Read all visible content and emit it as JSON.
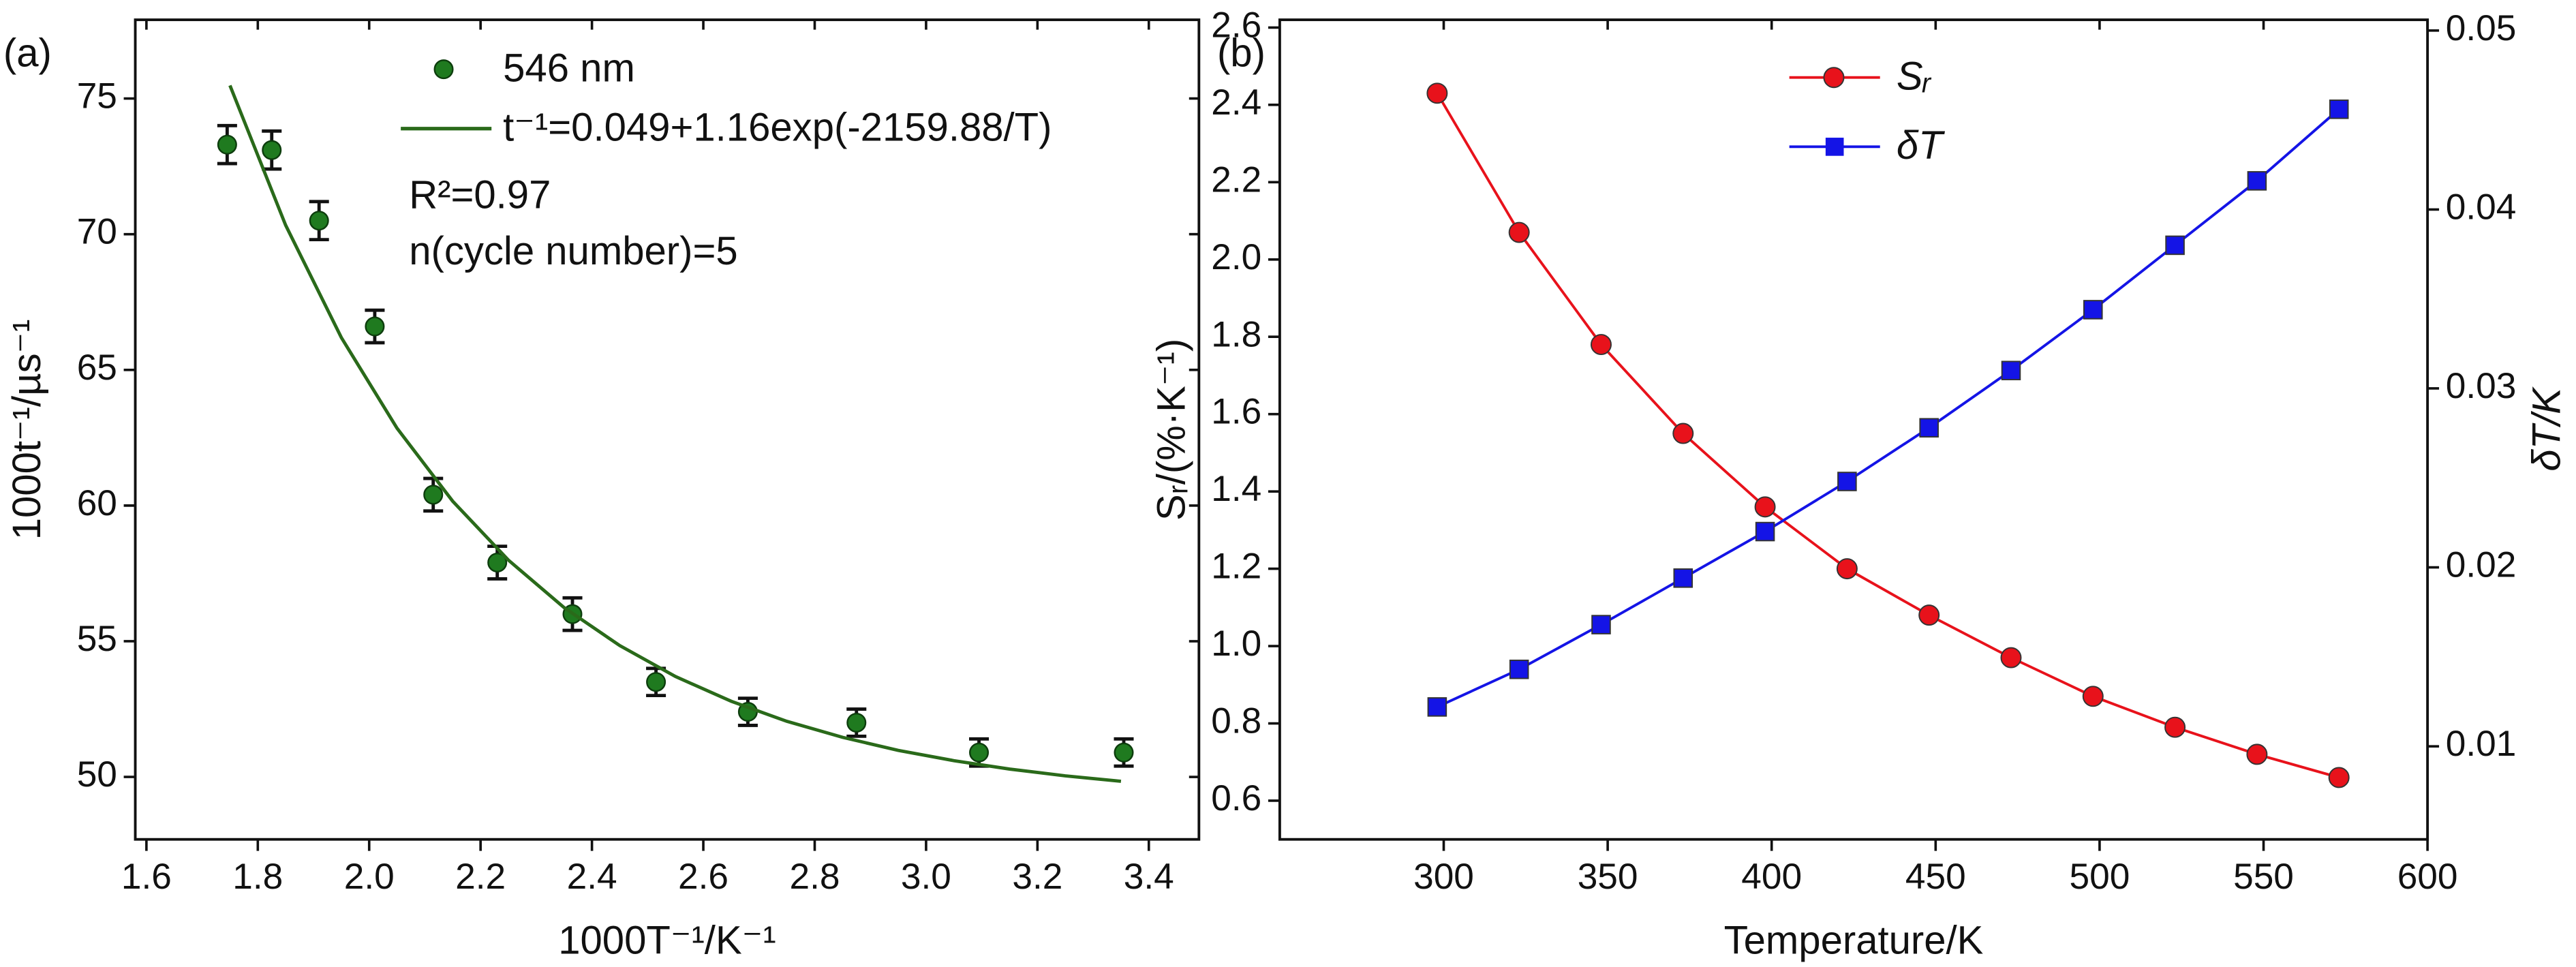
{
  "chart_data": [
    {
      "type": "scatter",
      "panel_label": "(a)",
      "x_label": "1000T⁻¹/K⁻¹",
      "y_label": "1000t⁻¹/µs⁻¹",
      "xlim": [
        1.58,
        3.49
      ],
      "ylim": [
        47.7,
        77.9
      ],
      "xticks": [
        1.6,
        1.8,
        {
          "value": 2,
          "label": "2.0"
        },
        2.2,
        2.4,
        2.6,
        2.8,
        {
          "value": 3,
          "label": "3.0"
        },
        3.2,
        3.4
      ],
      "yticks": [
        50,
        55,
        60,
        65,
        70,
        75
      ],
      "legend_position": "upper right",
      "annotations": [
        "R²=0.97",
        "n(cycle number)=5"
      ],
      "series": [
        {
          "name": "546 nm",
          "kind": "points",
          "color": "#1f7a1f",
          "x": [
            1.745,
            1.825,
            1.91,
            2.01,
            2.115,
            2.23,
            2.365,
            2.515,
            2.68,
            2.875,
            3.095,
            3.355
          ],
          "values": [
            73.3,
            73.1,
            70.5,
            66.6,
            60.4,
            57.9,
            56.0,
            53.5,
            52.4,
            52.0,
            50.9,
            50.9
          ],
          "errors": [
            0.7,
            0.7,
            0.7,
            0.6,
            0.6,
            0.6,
            0.6,
            0.5,
            0.5,
            0.5,
            0.5,
            0.5
          ]
        },
        {
          "name": "t⁻¹=0.049+1.16exp(-2159.88/T)",
          "kind": "line",
          "color": "#2a6a1a",
          "x": [
            1.75,
            1.85,
            1.95,
            2.05,
            2.15,
            2.25,
            2.35,
            2.45,
            2.55,
            2.65,
            2.75,
            2.85,
            2.95,
            3.05,
            3.15,
            3.25,
            3.35
          ],
          "values": [
            75.48,
            70.33,
            66.19,
            62.85,
            60.16,
            57.99,
            56.24,
            54.84,
            53.7,
            52.79,
            52.05,
            51.46,
            50.98,
            50.6,
            50.29,
            50.04,
            49.84
          ]
        }
      ]
    },
    {
      "type": "line",
      "panel_label": "(b)",
      "x_label": "Temperature/K",
      "y_label": "Sᵣ/(%·K⁻¹)",
      "y2_label": "δT/K",
      "xlim": [
        250,
        600
      ],
      "ylim": [
        0.5,
        2.62
      ],
      "y2lim": [
        0.0048,
        0.0506
      ],
      "xticks": [
        300,
        350,
        400,
        450,
        500,
        550,
        600
      ],
      "yticks": [
        0.6,
        0.8,
        {
          "value": 1,
          "label": "1.0"
        },
        1.2,
        1.4,
        1.6,
        1.8,
        {
          "value": 2,
          "label": "2.0"
        },
        2.2,
        2.4,
        2.6
      ],
      "y2ticks": [
        0.01,
        0.02,
        0.03,
        0.04,
        0.05
      ],
      "legend_position": "upper center",
      "x": [
        298,
        323,
        348,
        373,
        398,
        423,
        448,
        473,
        498,
        523,
        548,
        573
      ],
      "series": [
        {
          "name": "Sᵣ",
          "color": "#e8121b",
          "marker": "circle",
          "values": [
            2.43,
            2.07,
            1.78,
            1.55,
            1.36,
            1.2,
            1.08,
            0.97,
            0.87,
            0.79,
            0.72,
            0.66
          ]
        },
        {
          "name": "δT",
          "color": "#1414e6",
          "marker": "square",
          "axis": "y2",
          "values": [
            0.0122,
            0.0143,
            0.0168,
            0.0194,
            0.022,
            0.0248,
            0.0278,
            0.031,
            0.0344,
            0.038,
            0.0416,
            0.0456
          ]
        }
      ]
    }
  ]
}
